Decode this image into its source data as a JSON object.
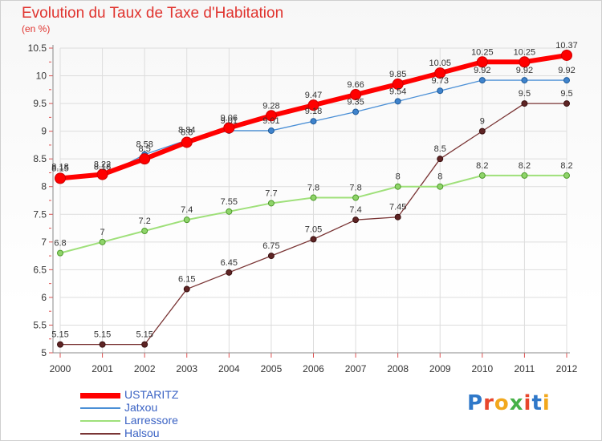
{
  "title": "Evolution du Taux de Taxe d'Habitation",
  "subtitle": "(en %)",
  "logo": {
    "text": "Proxiti",
    "letters": [
      "P",
      "r",
      "o",
      "x",
      "i",
      "t",
      "i"
    ],
    "colors": [
      "#2f78c9",
      "#e8462c",
      "#f2a81d",
      "#47b148",
      "#e8462c",
      "#2f78c9",
      "#f2a81d"
    ]
  },
  "chart_data": {
    "type": "line",
    "x": [
      "2000",
      "2001",
      "2002",
      "2003",
      "2004",
      "2005",
      "2006",
      "2007",
      "2008",
      "2009",
      "2010",
      "2011",
      "2012"
    ],
    "ylim": [
      5,
      10.5
    ],
    "yticks": [
      "5",
      "5.5",
      "6",
      "6.5",
      "7",
      "7.5",
      "8",
      "8.5",
      "9",
      "9.5",
      "10",
      "10.5"
    ],
    "grid": true,
    "legend": "bottom-left",
    "series": [
      {
        "name": "USTARITZ",
        "color": "#ff0000",
        "values": [
          8.15,
          8.22,
          8.5,
          8.8,
          9.06,
          9.28,
          9.47,
          9.66,
          9.85,
          10.05,
          10.25,
          10.25,
          10.37
        ],
        "labels": [
          "8.15",
          "8.22",
          "8.5",
          "8.8",
          "9.06",
          "9.28",
          "9.47",
          "9.66",
          "9.85",
          "10.05",
          "10.25",
          "10.25",
          "10.37"
        ]
      },
      {
        "name": "Jatxou",
        "color": "#4a8fd6",
        "values": [
          8.18,
          8.18,
          8.58,
          8.84,
          9.01,
          9.01,
          9.18,
          9.35,
          9.54,
          9.73,
          9.92,
          9.92,
          9.92
        ],
        "labels": [
          "8.18",
          "8.18",
          "8.58",
          "8.84",
          "9.01",
          "9.01",
          "9.18",
          "9.35",
          "9.54",
          "9.73",
          "9.92",
          "9.92",
          "9.92"
        ]
      },
      {
        "name": "Larressore",
        "color": "#9fe07a",
        "values": [
          6.8,
          7,
          7.2,
          7.4,
          7.55,
          7.7,
          7.8,
          7.8,
          8,
          8,
          8.2,
          8.2,
          8.2
        ],
        "labels": [
          "6.8",
          "7",
          "7.2",
          "7.4",
          "7.55",
          "7.7",
          "7.8",
          "7.8",
          "8",
          "8",
          "8.2",
          "8.2",
          "8.2"
        ]
      },
      {
        "name": "Halsou",
        "color": "#7a3535",
        "values": [
          5.15,
          5.15,
          5.15,
          6.15,
          6.45,
          6.75,
          7.05,
          7.4,
          7.45,
          8.5,
          9,
          9.5,
          9.5
        ],
        "labels": [
          "5.15",
          "5.15",
          "5.15",
          "6.15",
          "6.45",
          "6.75",
          "7.05",
          "7.4",
          "7.45",
          "8.5",
          "9",
          "9.5",
          "9.5"
        ]
      }
    ]
  }
}
